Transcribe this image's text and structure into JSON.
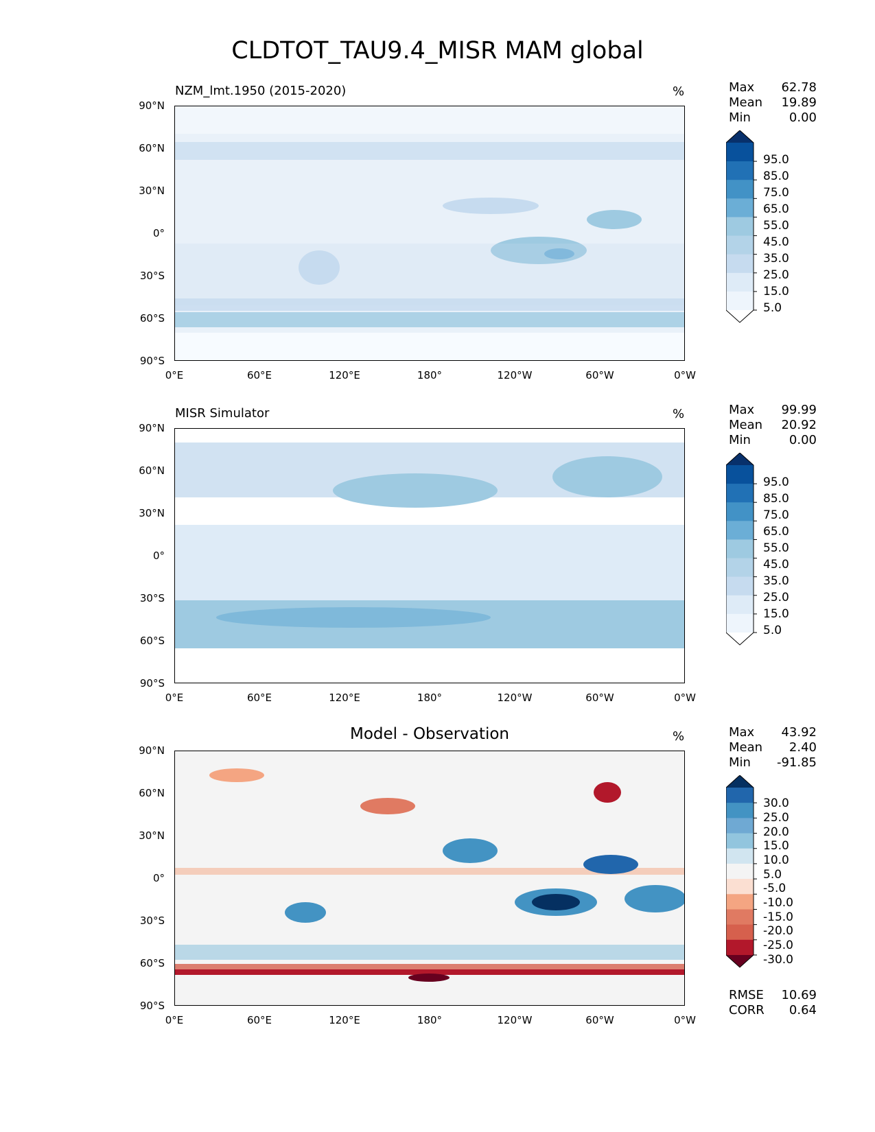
{
  "title": "CLDTOT_TAU9.4_MISR MAM global",
  "x_ticks": [
    "0°E",
    "60°E",
    "120°E",
    "180°",
    "120°W",
    "60°W",
    "0°W"
  ],
  "y_ticks": [
    "90°N",
    "60°N",
    "30°N",
    "0°",
    "30°S",
    "60°S",
    "90°S"
  ],
  "units": "%",
  "chart_data": [
    {
      "type": "heatmap",
      "title": "NZM_lmt.1950 (2015-2020)",
      "units": "%",
      "stats": {
        "max_label": "Max",
        "max": "62.78",
        "mean_label": "Mean",
        "mean": "19.89",
        "min_label": "Min",
        "min": "0.00"
      },
      "colorbar_labels": [
        "95.0",
        "85.0",
        "75.0",
        "65.0",
        "55.0",
        "45.0",
        "35.0",
        "25.0",
        "15.0",
        "5.0"
      ],
      "colorbar_colors": [
        "#08306b",
        "#08519c",
        "#2171b5",
        "#4292c6",
        "#6baed6",
        "#9ecae1",
        "#b3d3e8",
        "#c6dbef",
        "#deebf7",
        "#eef5fc",
        "#ffffff"
      ],
      "xlim": [
        0,
        360
      ],
      "ylim": [
        -90,
        90
      ]
    },
    {
      "type": "heatmap",
      "title": "MISR Simulator",
      "units": "%",
      "stats": {
        "max_label": "Max",
        "max": "99.99",
        "mean_label": "Mean",
        "mean": "20.92",
        "min_label": "Min",
        "min": "0.00"
      },
      "colorbar_labels": [
        "95.0",
        "85.0",
        "75.0",
        "65.0",
        "55.0",
        "45.0",
        "35.0",
        "25.0",
        "15.0",
        "5.0"
      ],
      "colorbar_colors": [
        "#08306b",
        "#08519c",
        "#2171b5",
        "#4292c6",
        "#6baed6",
        "#9ecae1",
        "#b3d3e8",
        "#c6dbef",
        "#deebf7",
        "#eef5fc",
        "#ffffff"
      ],
      "xlim": [
        0,
        360
      ],
      "ylim": [
        -90,
        90
      ]
    },
    {
      "type": "heatmap",
      "title": "Model - Observation",
      "units": "%",
      "stats": {
        "max_label": "Max",
        "max": "43.92",
        "mean_label": "Mean",
        "mean": "2.40",
        "min_label": "Min",
        "min": "-91.85"
      },
      "colorbar_labels": [
        "30.0",
        "25.0",
        "20.0",
        "15.0",
        "10.0",
        "5.0",
        "-5.0",
        "-10.0",
        "-15.0",
        "-20.0",
        "-25.0",
        "-30.0"
      ],
      "colorbar_colors": [
        "#053061",
        "#2166ac",
        "#4393c3",
        "#6fa9d3",
        "#92c5de",
        "#d1e5f0",
        "#f4f4f4",
        "#fbdfd2",
        "#f4a582",
        "#e07a62",
        "#d6604d",
        "#b2182b",
        "#67001f"
      ],
      "metrics": {
        "rmse_label": "RMSE",
        "rmse": "10.69",
        "corr_label": "CORR",
        "corr": "0.64"
      },
      "xlim": [
        0,
        360
      ],
      "ylim": [
        -90,
        90
      ]
    }
  ]
}
